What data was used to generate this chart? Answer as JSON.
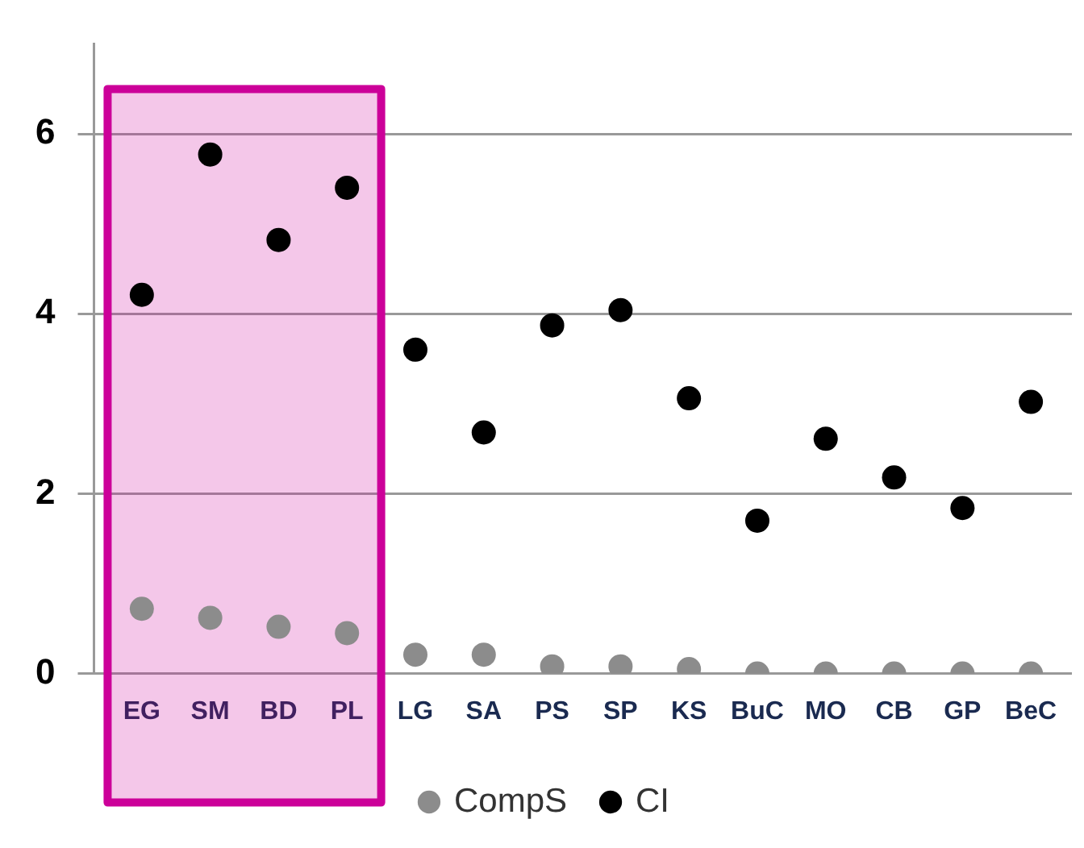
{
  "chart_data": {
    "type": "scatter",
    "categories": [
      "EG",
      "SM",
      "BD",
      "PL",
      "LG",
      "SA",
      "PS",
      "SP",
      "KS",
      "BuC",
      "MO",
      "CB",
      "GP",
      "BeC"
    ],
    "series": [
      {
        "name": "CompS",
        "color": "#8c8c8c",
        "values": [
          0.72,
          0.62,
          0.52,
          0.45,
          0.21,
          0.21,
          0.08,
          0.08,
          0.05,
          0,
          0,
          0,
          0,
          0
        ]
      },
      {
        "name": "CI",
        "color": "#000000",
        "values": [
          4.21,
          5.77,
          4.82,
          5.4,
          3.6,
          2.68,
          3.87,
          4.04,
          3.06,
          1.7,
          2.61,
          2.18,
          1.84,
          3.02
        ]
      }
    ],
    "ylim": [
      0,
      7
    ],
    "yticks": [
      0,
      2,
      4,
      6
    ],
    "grid": "y",
    "legend": "bottom",
    "marker": "circle",
    "bands": [
      {
        "axis": "x",
        "from": "EG",
        "to": "PL",
        "color": "#cc0099"
      }
    ]
  }
}
